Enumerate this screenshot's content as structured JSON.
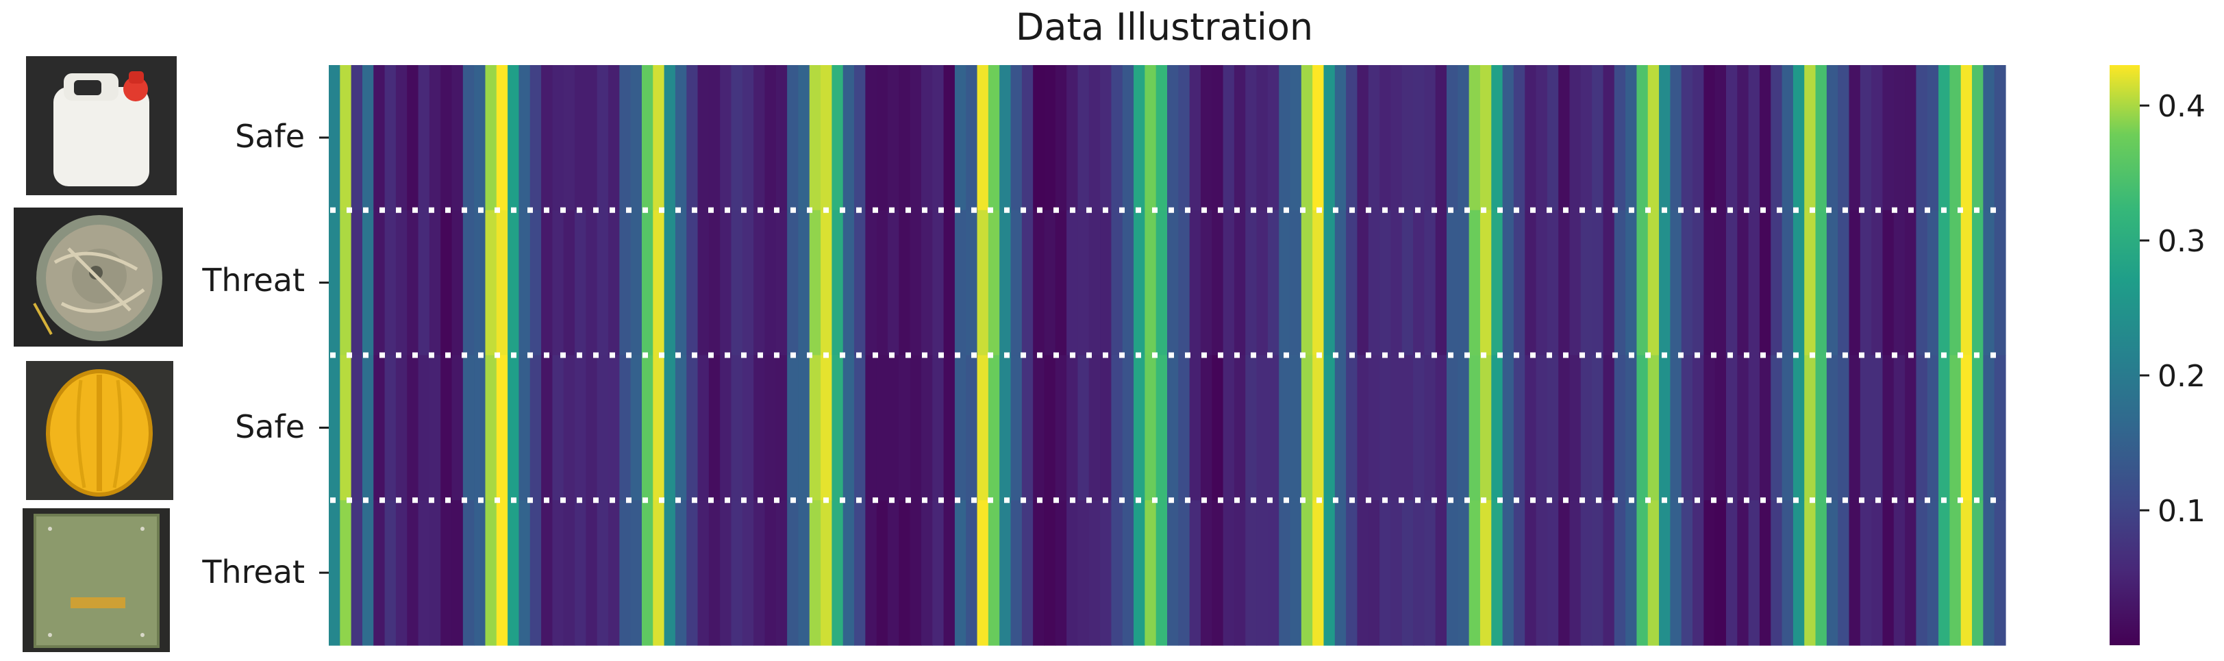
{
  "chart_data": {
    "type": "heatmap",
    "title": "Data Illustration",
    "rows": [
      "Safe",
      "Threat",
      "Safe",
      "Threat"
    ],
    "row_images": [
      "jerrycan",
      "landmine",
      "hardhat",
      "book"
    ],
    "colormap": "viridis",
    "color_range": [
      0.0,
      0.43
    ],
    "colorbar_ticks": [
      {
        "value": 0.1,
        "label": "0.1"
      },
      {
        "value": 0.2,
        "label": "0.2"
      },
      {
        "value": 0.3,
        "label": "0.3"
      },
      {
        "value": 0.4,
        "label": "0.4"
      }
    ],
    "grid": false,
    "row_separators": "dotted-white",
    "columns": 150,
    "peaks": [
      {
        "col": 0,
        "value": 0.22
      },
      {
        "col": 1,
        "value": 0.4
      },
      {
        "col": 3,
        "value": 0.18
      },
      {
        "col": 14,
        "value": 0.4
      },
      {
        "col": 15,
        "value": 0.43
      },
      {
        "col": 16,
        "value": 0.28
      },
      {
        "col": 28,
        "value": 0.36
      },
      {
        "col": 29,
        "value": 0.42
      },
      {
        "col": 30,
        "value": 0.24
      },
      {
        "col": 43,
        "value": 0.4
      },
      {
        "col": 44,
        "value": 0.42
      },
      {
        "col": 45,
        "value": 0.3
      },
      {
        "col": 58,
        "value": 0.42
      },
      {
        "col": 59,
        "value": 0.38
      },
      {
        "col": 60,
        "value": 0.22
      },
      {
        "col": 72,
        "value": 0.28
      },
      {
        "col": 73,
        "value": 0.38
      },
      {
        "col": 74,
        "value": 0.32
      },
      {
        "col": 87,
        "value": 0.4
      },
      {
        "col": 88,
        "value": 0.43
      },
      {
        "col": 89,
        "value": 0.26
      },
      {
        "col": 102,
        "value": 0.38
      },
      {
        "col": 103,
        "value": 0.41
      },
      {
        "col": 104,
        "value": 0.28
      },
      {
        "col": 117,
        "value": 0.34
      },
      {
        "col": 118,
        "value": 0.4
      },
      {
        "col": 119,
        "value": 0.24
      },
      {
        "col": 131,
        "value": 0.26
      },
      {
        "col": 132,
        "value": 0.4
      },
      {
        "col": 133,
        "value": 0.34
      },
      {
        "col": 144,
        "value": 0.3
      },
      {
        "col": 145,
        "value": 0.36
      },
      {
        "col": 146,
        "value": 0.42
      },
      {
        "col": 147,
        "value": 0.34
      }
    ]
  }
}
